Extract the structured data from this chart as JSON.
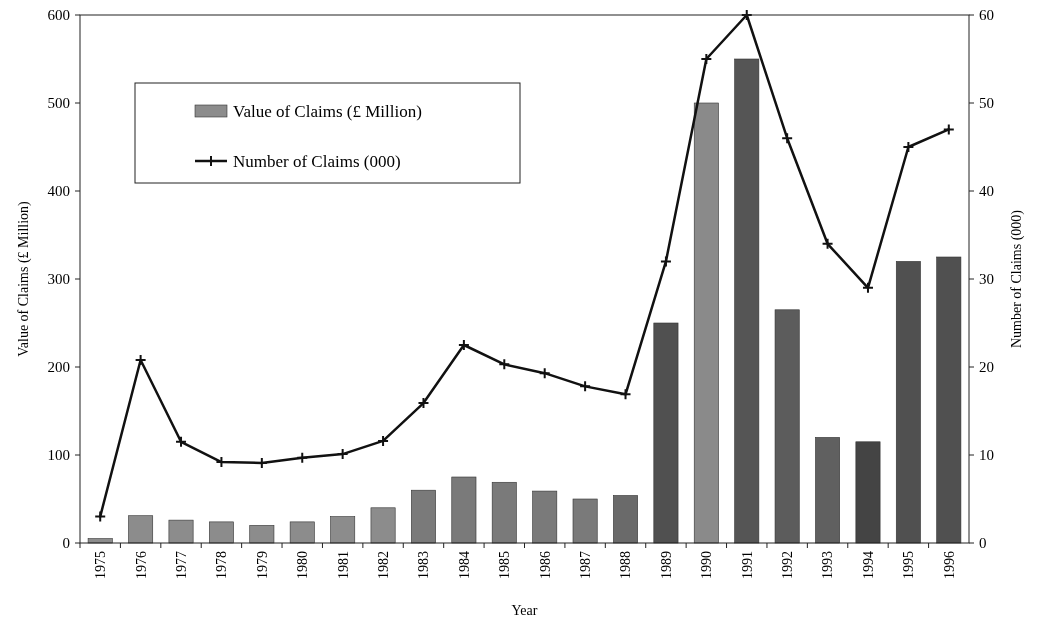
{
  "chart_data": {
    "type": "bar",
    "xlabel": "Year",
    "ylabel": "Value of Claims (£ Million)",
    "y2label": "Number of Claims (000)",
    "categories": [
      "1975",
      "1976",
      "1977",
      "1978",
      "1979",
      "1980",
      "1981",
      "1982",
      "1983",
      "1984",
      "1985",
      "1986",
      "1987",
      "1988",
      "1989",
      "1990",
      "1991",
      "1992",
      "1993",
      "1994",
      "1995",
      "1996"
    ],
    "series": [
      {
        "name": "Value of Claims (£ Million)",
        "color": "#8c8c8c",
        "colors": [
          "#8c8c8c",
          "#8c8c8c",
          "#8c8c8c",
          "#8c8c8c",
          "#8c8c8c",
          "#8c8c8c",
          "#8c8c8c",
          "#8c8c8c",
          "#7a7a7a",
          "#7a7a7a",
          "#7a7a7a",
          "#7a7a7a",
          "#7a7a7a",
          "#6a6a6a",
          "#505050",
          "#8a8a8a",
          "#555555",
          "#5c5c5c",
          "#606060",
          "#444444",
          "#505050",
          "#505050"
        ],
        "values": [
          5,
          31,
          26,
          24,
          20,
          24,
          30,
          40,
          60,
          75,
          69,
          59,
          50,
          54,
          250,
          500,
          550,
          265,
          120,
          115,
          320,
          325
        ]
      },
      {
        "name": "Number of Claims (000)",
        "type": "line",
        "axis": "y2",
        "color": "#111111",
        "values": [
          3,
          20.8,
          11.5,
          9.2,
          9.1,
          9.7,
          10.1,
          11.6,
          15.9,
          22.5,
          20.3,
          19.3,
          17.8,
          16.9,
          32,
          55,
          60,
          46,
          34,
          29,
          45,
          47
        ]
      }
    ],
    "ylim": [
      0,
      600
    ],
    "yticks": [
      0,
      100,
      200,
      300,
      400,
      500,
      600
    ],
    "y2lim": [
      0,
      60
    ],
    "y2ticks": [
      0,
      10,
      20,
      30,
      40,
      50,
      60
    ],
    "legend": "top left",
    "marker": "cross",
    "line_style": "solid",
    "grid": false
  }
}
